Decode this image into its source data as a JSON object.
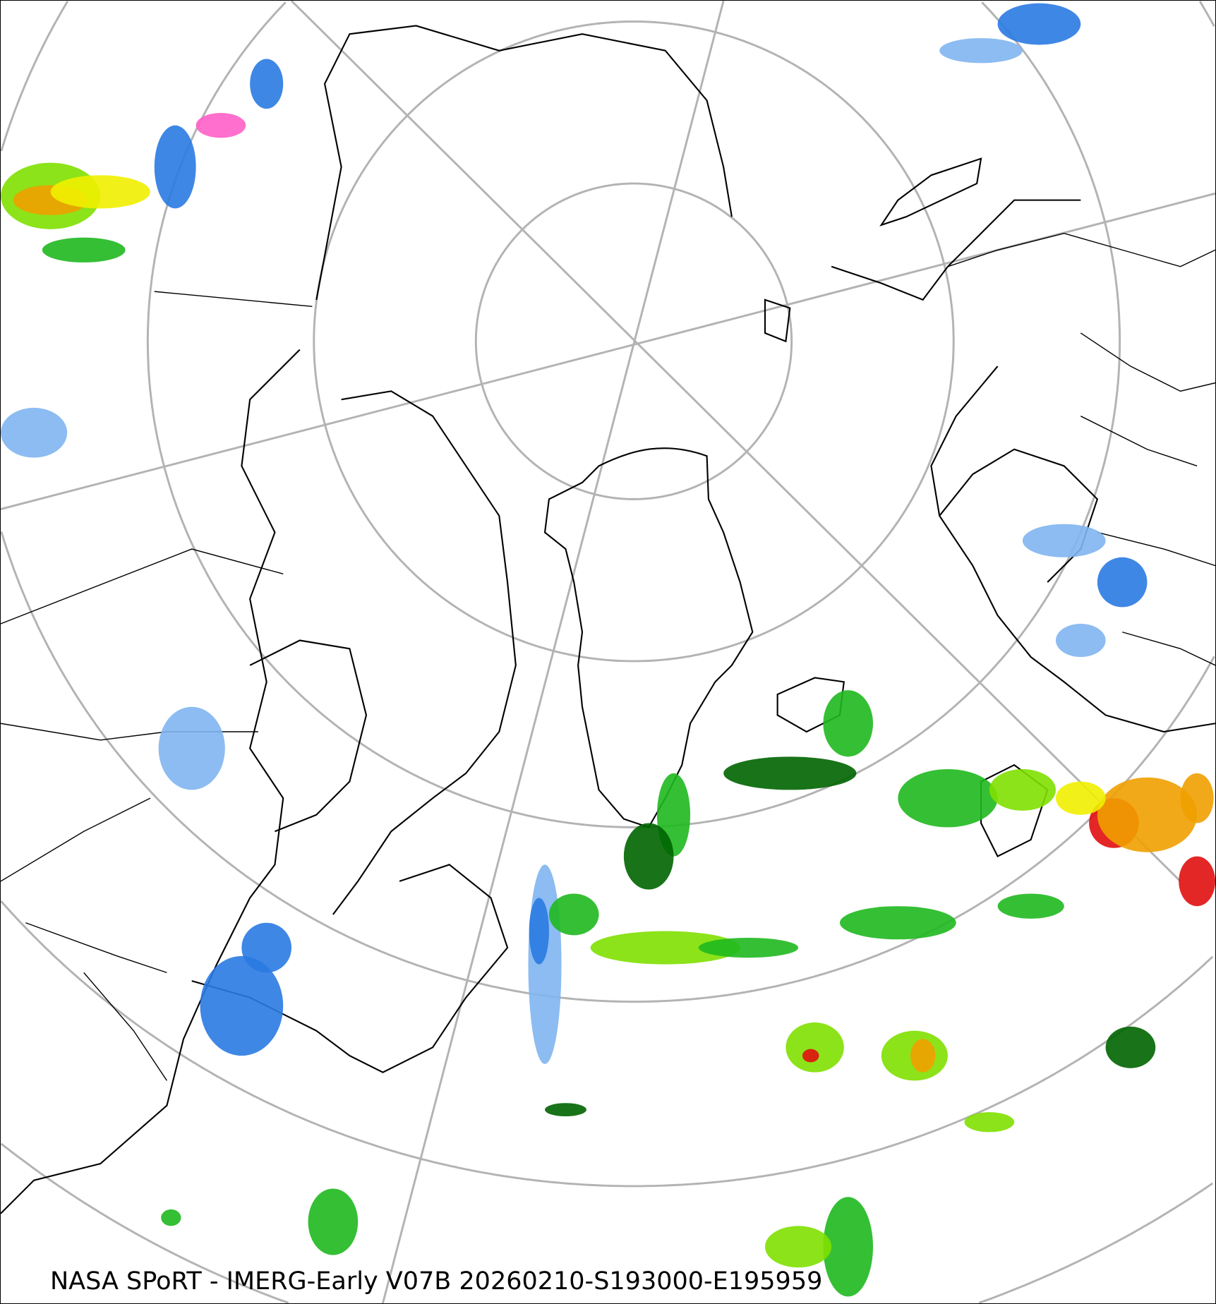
{
  "caption": "NASA SPoRT - IMERG-Early V07B 20260210-S193000-E195959",
  "map": {
    "projection": "north polar stereographic",
    "graticule_color": "#b3b3b3",
    "coastline_color": "#000000",
    "precip_colors": {
      "very_light": "#cfe4fb",
      "light_blue": "#7fb5ef",
      "blue": "#2a7ae2",
      "dark_green": "#006400",
      "green": "#1fb81f",
      "light_green": "#7fe000",
      "yellow": "#f0f000",
      "orange": "#f0a000",
      "red": "#e01010",
      "pink": "#ff5fc8"
    }
  }
}
